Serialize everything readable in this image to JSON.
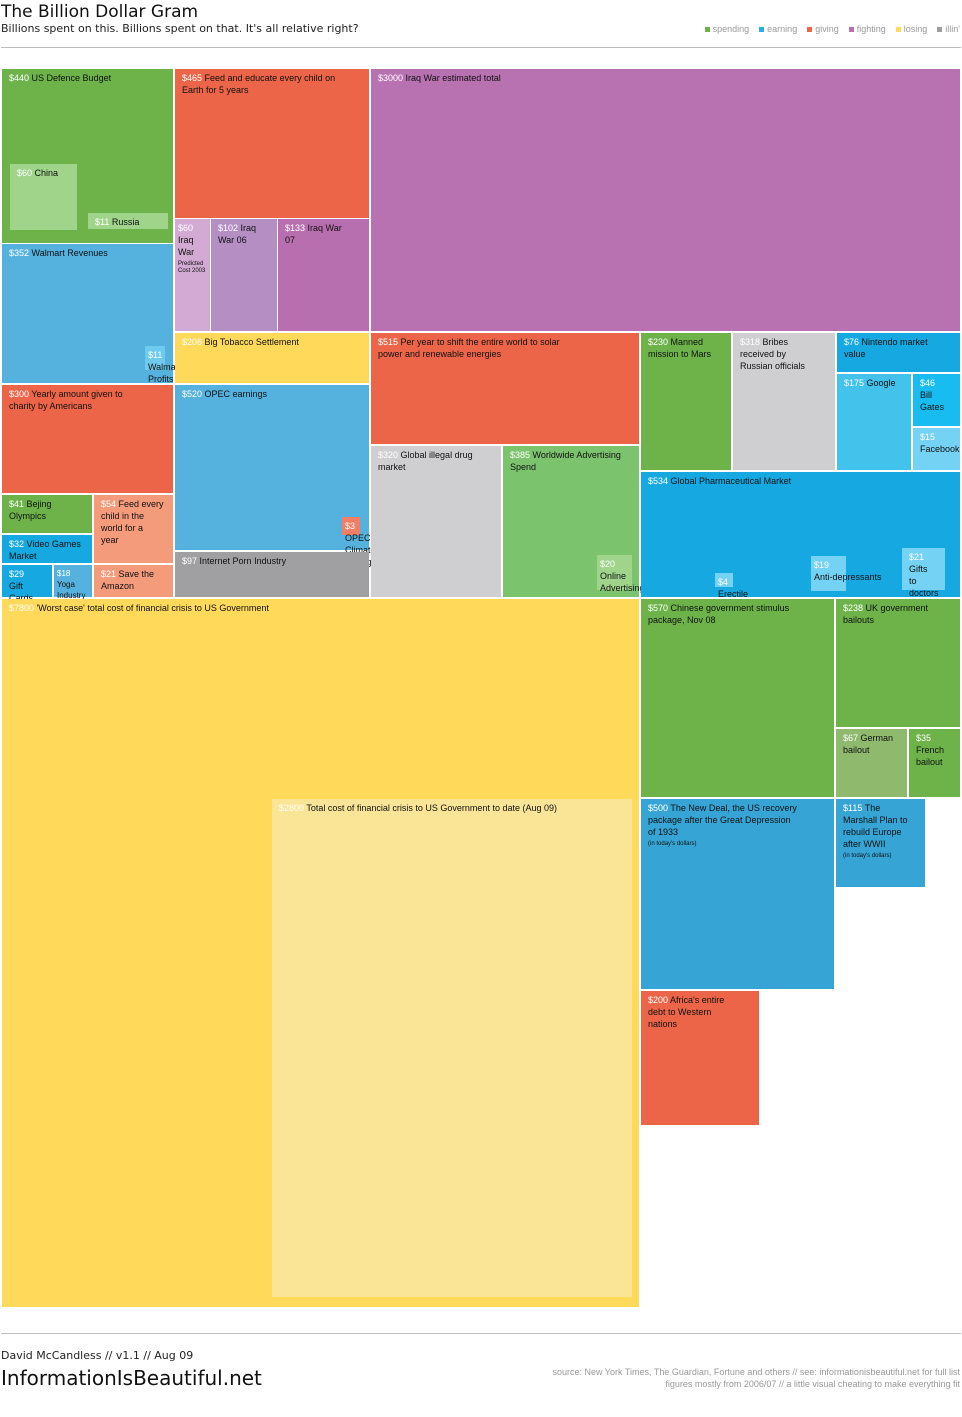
{
  "header": {
    "title": "The Billion Dollar Gram",
    "subtitle": "Billions spent on this. Billions spent on that. It's all relative right?"
  },
  "legend": [
    {
      "label": "spending",
      "color": "#6eb34a"
    },
    {
      "label": "earning",
      "color": "#2baee6"
    },
    {
      "label": "giving",
      "color": "#ef6548"
    },
    {
      "label": "fighting",
      "color": "#b86fb0"
    },
    {
      "label": "losing",
      "color": "#ffd95a"
    },
    {
      "label": "illin'",
      "color": "#9e9e9e"
    }
  ],
  "footer": {
    "credit": "David McCandless // v1.1 // Aug 09",
    "site": "InformationIsBeautiful.net",
    "source_line1": "source: New York Times, The Guardian, Fortune and others // see: informationisbeautiful.net for full list",
    "source_line2": "figures mostly from 2006/07 // a little visual cheating to make everything fit"
  },
  "chart_data": {
    "type": "treemap",
    "unit": "$ billions",
    "items": [
      {
        "value": 440,
        "label": "US Defence Budget",
        "category": "spending"
      },
      {
        "value": 60,
        "label": "China",
        "category": "spending"
      },
      {
        "value": 11,
        "label": "Russia",
        "category": "spending"
      },
      {
        "value": 465,
        "label": "Feed and educate every child on Earth for 5 years",
        "category": "giving"
      },
      {
        "value": 3000,
        "label": "Iraq War estimated total",
        "category": "fighting"
      },
      {
        "value": 60,
        "label": "Iraq War",
        "note": "Predicted Cost 2003",
        "category": "fighting"
      },
      {
        "value": 102,
        "label": "Iraq War 06",
        "category": "fighting"
      },
      {
        "value": 133,
        "label": "Iraq War 07",
        "category": "fighting"
      },
      {
        "value": 352,
        "label": "Walmart Revenues",
        "category": "earning"
      },
      {
        "value": 11,
        "label": "Walmart Profits",
        "category": "earning"
      },
      {
        "value": 206,
        "label": "Big Tobacco Settlement",
        "category": "losing"
      },
      {
        "value": 515,
        "label": "Per year to shift the entire world to solar power and renewable energies",
        "category": "giving"
      },
      {
        "value": 230,
        "label": "Manned mission to Mars",
        "category": "spending"
      },
      {
        "value": 318,
        "label": "Bribes received by Russian officials",
        "category": "illin'"
      },
      {
        "value": 76,
        "label": "Nintendo market value",
        "category": "earning"
      },
      {
        "value": 175,
        "label": "Google",
        "category": "earning"
      },
      {
        "value": 46,
        "label": "Bill Gates",
        "category": "earning"
      },
      {
        "value": 15,
        "label": "Facebook",
        "category": "earning"
      },
      {
        "value": 300,
        "label": "Yearly amount given to charity by Americans",
        "category": "giving"
      },
      {
        "value": 520,
        "label": "OPEC earnings",
        "category": "earning"
      },
      {
        "value": 3,
        "label": "OPEC Climate Change Fund",
        "category": "giving"
      },
      {
        "value": 320,
        "label": "Global illegal drug market",
        "category": "illin'"
      },
      {
        "value": 385,
        "label": "Worldwide Advertising Spend",
        "category": "spending"
      },
      {
        "value": 20,
        "label": "Online Advertising",
        "category": "spending"
      },
      {
        "value": 534,
        "label": "Global Pharmaceutical Market",
        "category": "earning"
      },
      {
        "value": 4,
        "label": "Erectile Dysfunction",
        "category": "earning"
      },
      {
        "value": 19,
        "label": "Anti-depressants",
        "category": "earning"
      },
      {
        "value": 21,
        "label": "Gifts to doctors",
        "category": "earning"
      },
      {
        "value": 41,
        "label": "Bejing Olympics",
        "category": "spending"
      },
      {
        "value": 54,
        "label": "Feed every child in the world for a year",
        "category": "giving"
      },
      {
        "value": 32,
        "label": "Video Games Market",
        "category": "earning"
      },
      {
        "value": 29,
        "label": "Gift Cards",
        "category": "earning"
      },
      {
        "value": 18,
        "label": "Yoga Industry",
        "category": "earning"
      },
      {
        "value": 21,
        "label": "Save the Amazon",
        "category": "giving"
      },
      {
        "value": 97,
        "label": "Internet Porn Industry",
        "category": "illin'"
      },
      {
        "value": 7800,
        "label": "'Worst case' total cost of financial crisis to US Government",
        "category": "losing"
      },
      {
        "value": 2800,
        "label": "Total cost of financial crisis to US Government to date (Aug 09)",
        "category": "losing"
      },
      {
        "value": 570,
        "label": "Chinese government stimulus package, Nov 08",
        "category": "spending"
      },
      {
        "value": 238,
        "label": "UK government bailouts",
        "category": "spending"
      },
      {
        "value": 67,
        "label": "German bailout",
        "category": "spending"
      },
      {
        "value": 35,
        "label": "French bailout",
        "category": "spending"
      },
      {
        "value": 500,
        "label": "The New Deal, the US recovery package after the Great Depression of 1933",
        "note": "(in today's dollars)",
        "category": "spending"
      },
      {
        "value": 115,
        "label": "The Marshall Plan to rebuild Europe after WWII",
        "note": "(in today's dollars)",
        "category": "spending"
      },
      {
        "value": 200,
        "label": "Africa's entire debt to Western nations",
        "category": "giving"
      }
    ]
  }
}
